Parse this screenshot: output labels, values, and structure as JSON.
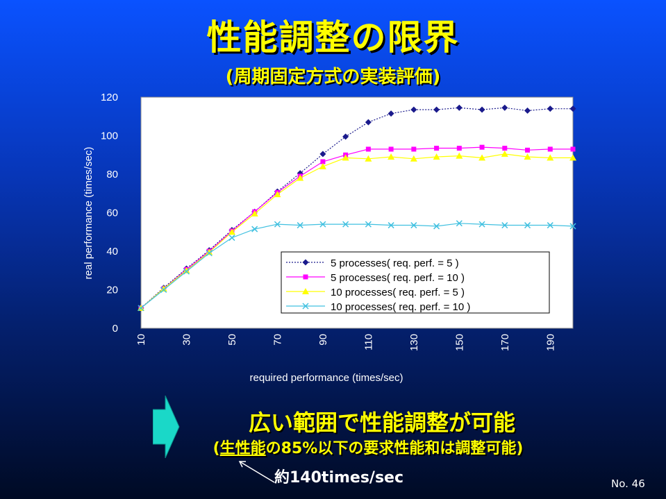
{
  "title": "性能調整の限界",
  "subtitle": "(周期固定方式の実装評価)",
  "chart_data": {
    "type": "line",
    "xlabel": "required performance (times/sec)",
    "ylabel": "real performance (times/sec)",
    "xlim": [
      10,
      200
    ],
    "ylim": [
      0,
      120
    ],
    "x_ticks": [
      10,
      30,
      50,
      70,
      90,
      110,
      130,
      150,
      170,
      190
    ],
    "y_ticks": [
      0,
      20,
      40,
      60,
      80,
      100,
      120
    ],
    "x": [
      10,
      20,
      30,
      40,
      50,
      60,
      70,
      80,
      90,
      100,
      110,
      120,
      130,
      140,
      150,
      160,
      170,
      180,
      190,
      200
    ],
    "legend_position": "inside-bottom-right",
    "grid": false,
    "series": [
      {
        "name": "5 processes( req. perf. = 5 )",
        "color": "#1a1a8c",
        "marker": "diamond",
        "dash": "2,2",
        "values": [
          10.5,
          21,
          31,
          40.5,
          51,
          60.5,
          71,
          80.5,
          90.5,
          99.5,
          107,
          111.5,
          113.5,
          113.5,
          114.5,
          113.5,
          114.5,
          113,
          114,
          114
        ]
      },
      {
        "name": "5 processes( req. perf. = 10 )",
        "color": "#ff00ff",
        "marker": "square",
        "dash": "",
        "values": [
          10.5,
          20.5,
          30.5,
          40,
          50.5,
          60.5,
          70.5,
          79,
          86.5,
          90,
          93,
          93,
          93,
          93.5,
          93.5,
          94,
          93.5,
          92.5,
          93,
          93
        ]
      },
      {
        "name": "10 processes( req. perf. = 5 )",
        "color": "#ffff00",
        "marker": "triangle",
        "dash": "",
        "values": [
          10.5,
          20.5,
          30,
          39.5,
          50,
          59.5,
          69.5,
          78,
          84,
          88.5,
          88,
          89,
          88,
          89,
          89.5,
          88.5,
          90.5,
          89,
          88.5,
          88.5
        ]
      },
      {
        "name": "10 processes( req. perf. = 10 )",
        "color": "#40c0e0",
        "marker": "x",
        "dash": "",
        "values": [
          10.5,
          20,
          29.5,
          39,
          47,
          51.5,
          54,
          53.5,
          54,
          54,
          54,
          53.5,
          53.5,
          53,
          54.5,
          54,
          53.5,
          53.5,
          53.5,
          53
        ]
      }
    ]
  },
  "message": "広い範囲で性能調整が可能",
  "detail": {
    "open": "(",
    "underlined": "生性能",
    "rest": "の85%以下の要求性能和は調整可能)"
  },
  "note": "約140times/sec",
  "page_number": "No. 46",
  "colors": {
    "title": "#ffff00",
    "arrow": "#1ad8c8"
  }
}
